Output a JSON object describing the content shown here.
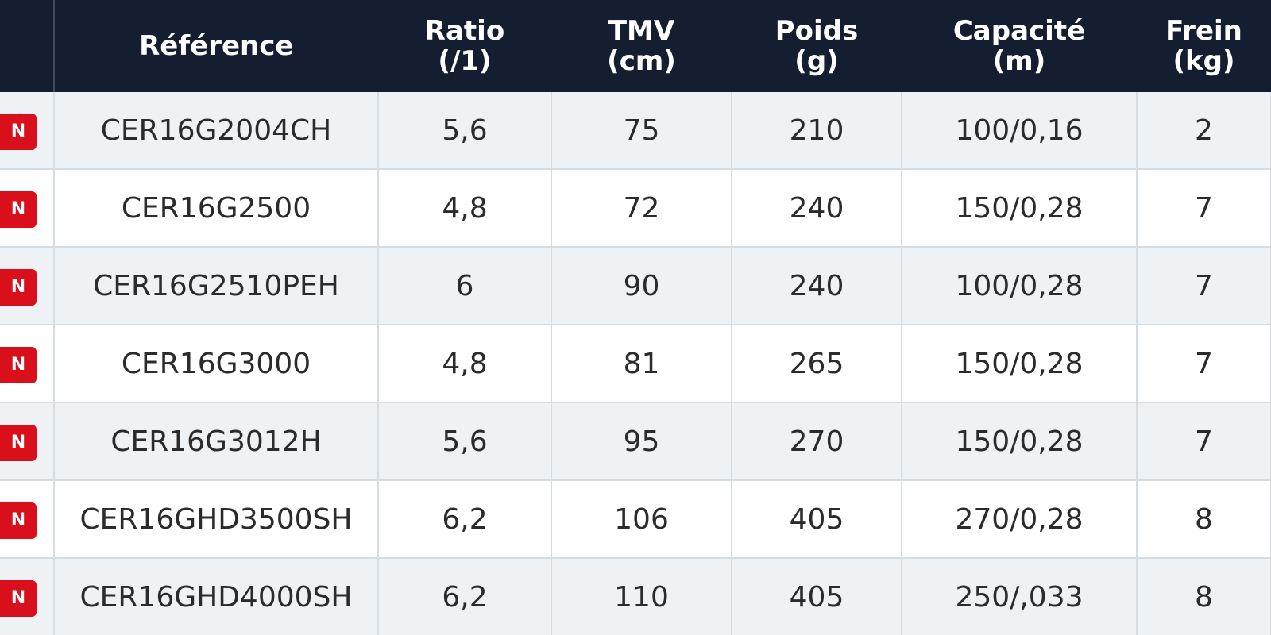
{
  "table": {
    "header": [
      [
        "Référence"
      ],
      [
        "Ratio",
        "(/1)"
      ],
      [
        "TMV",
        "(cm)"
      ],
      [
        "Poids",
        "(g)"
      ],
      [
        "Capacité",
        "(m)"
      ],
      [
        "Frein",
        "(kg)"
      ]
    ],
    "rows": [
      {
        "badge": "N",
        "cells": [
          "CER16G2004CH",
          "5,6",
          "75",
          "210",
          "100/0,16",
          "2"
        ]
      },
      {
        "badge": "N",
        "cells": [
          "CER16G2500",
          "4,8",
          "72",
          "240",
          "150/0,28",
          "7"
        ]
      },
      {
        "badge": "N",
        "cells": [
          "CER16G2510PEH",
          "6",
          "90",
          "240",
          "100/0,28",
          "7"
        ]
      },
      {
        "badge": "N",
        "cells": [
          "CER16G3000",
          "4,8",
          "81",
          "265",
          "150/0,28",
          "7"
        ]
      },
      {
        "badge": "N",
        "cells": [
          "CER16G3012H",
          "5,6",
          "95",
          "270",
          "150/0,28",
          "7"
        ]
      },
      {
        "badge": "N",
        "cells": [
          "CER16GHD3500SH",
          "6,2",
          "106",
          "405",
          "270/0,28",
          "8"
        ]
      },
      {
        "badge": "N",
        "cells": [
          "CER16GHD4000SH",
          "6,2",
          "110",
          "405",
          "250/,033",
          "8"
        ]
      }
    ]
  }
}
